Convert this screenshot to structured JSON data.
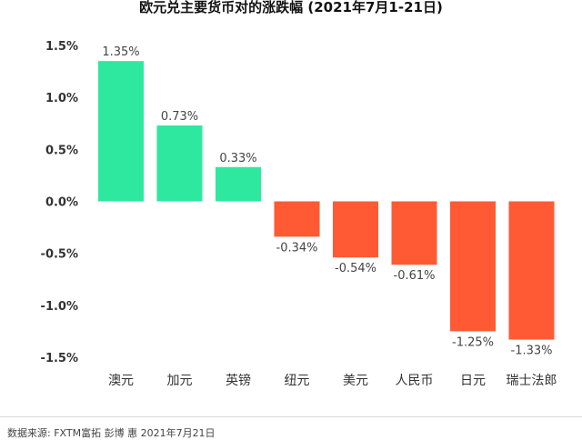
{
  "chart_data": {
    "type": "bar",
    "title": "欧元兑主要货币对的涨跌幅 (2021年7月1-21日)",
    "categories": [
      "澳元",
      "加元",
      "英镑",
      "纽元",
      "美元",
      "人民币",
      "日元",
      "瑞士法郎"
    ],
    "values": [
      1.35,
      0.73,
      0.33,
      -0.34,
      -0.54,
      -0.61,
      -1.25,
      -1.33
    ],
    "data_labels": [
      "1.35%",
      "0.73%",
      "0.33%",
      "-0.34%",
      "-0.54%",
      "-0.61%",
      "-1.25%",
      "-1.33%"
    ],
    "yticks": [
      1.5,
      1.0,
      0.5,
      0.0,
      -0.5,
      -1.0,
      -1.5
    ],
    "ytick_labels": [
      "1.5%",
      "1.0%",
      "0.5%",
      "0.0%",
      "-0.5%",
      "-1.0%",
      "-1.5%"
    ],
    "ylim": [
      -1.5,
      1.5
    ],
    "xlabel": "",
    "ylabel": "",
    "grid": false,
    "colors": {
      "positive": "#2ee8a0",
      "negative": "#ff5a33",
      "axis_text": "#333333",
      "label_text": "#444444"
    }
  },
  "footer": {
    "source": "数据来源: FXTM富拓  彭博 惠 2021年7月21日"
  }
}
